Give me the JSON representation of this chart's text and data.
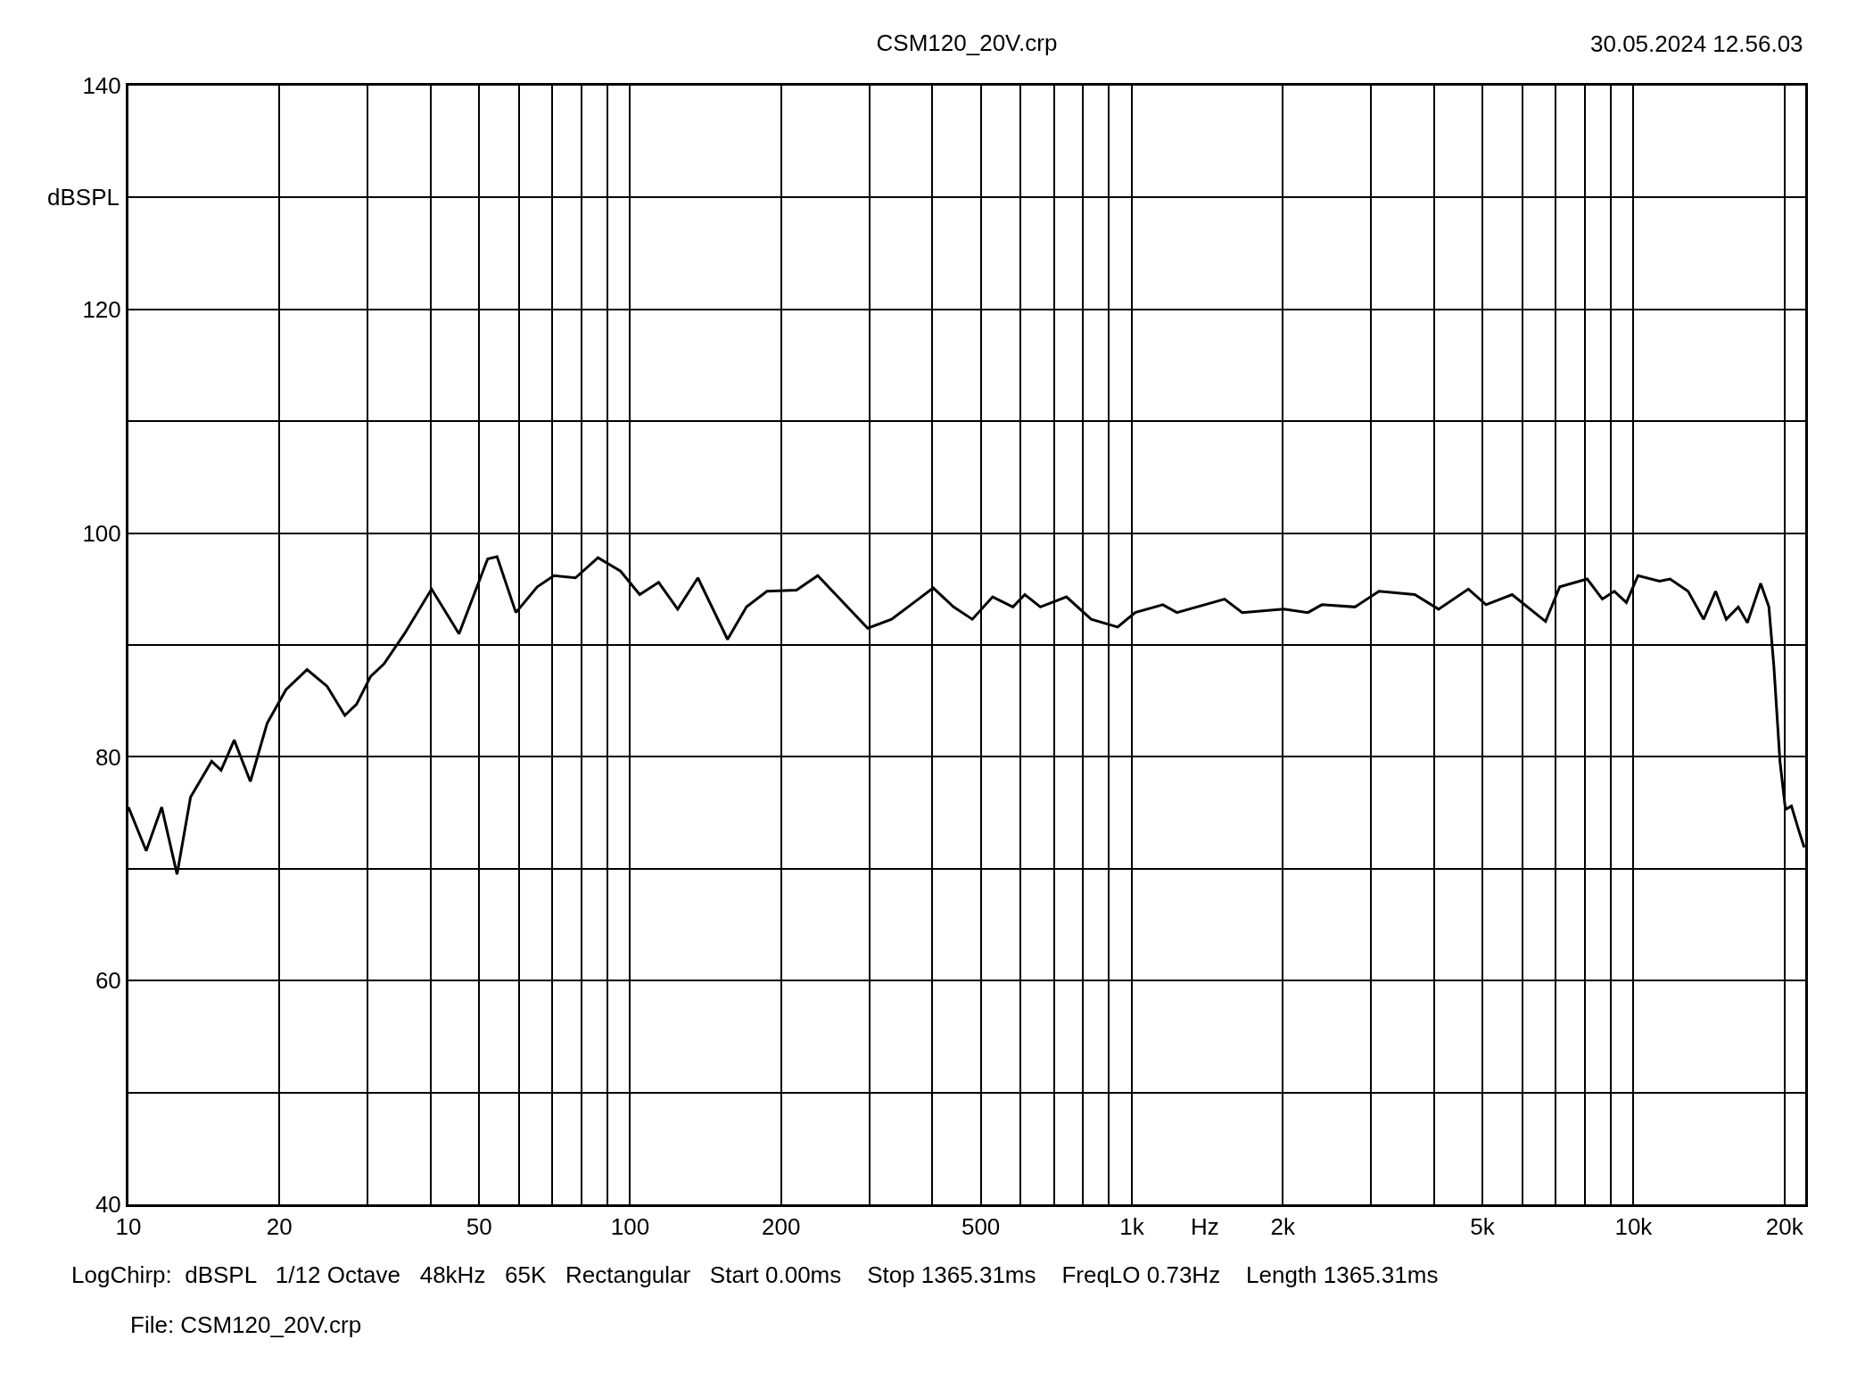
{
  "chart_data": {
    "type": "line",
    "title": "CSM120_20V.crp",
    "xlabel": "Hz",
    "ylabel": "dBSPL",
    "annotations": [
      "30.05.2024 12.56.03",
      "LogChirp:  dBSPL   1/12 Octave   48kHz   65K   Rectangular   Start 0.00ms    Stop 1365.31ms    FreqLO 0.73Hz    Length 1365.31ms",
      "File: CSM120_20V.crp"
    ],
    "log": "x",
    "grid": true,
    "marker": "none",
    "line_style": "solid",
    "xlim": [
      10,
      22000
    ],
    "ylim": [
      40,
      140
    ],
    "xticks": [
      10,
      20,
      {
        "value": 30,
        "label": null
      },
      {
        "value": 40,
        "label": null
      },
      50,
      {
        "value": 60,
        "label": null
      },
      {
        "value": 70,
        "label": null
      },
      {
        "value": 80,
        "label": null
      },
      {
        "value": 90,
        "label": null
      },
      100,
      200,
      {
        "value": 300,
        "label": null
      },
      {
        "value": 400,
        "label": null
      },
      500,
      {
        "value": 600,
        "label": null
      },
      {
        "value": 700,
        "label": null
      },
      {
        "value": 800,
        "label": null
      },
      {
        "value": 900,
        "label": null
      },
      {
        "value": 1000,
        "label": "1k"
      },
      {
        "value": 2000,
        "label": "2k"
      },
      {
        "value": 3000,
        "label": null
      },
      {
        "value": 4000,
        "label": null
      },
      {
        "value": 5000,
        "label": "5k"
      },
      {
        "value": 6000,
        "label": null
      },
      {
        "value": 7000,
        "label": null
      },
      {
        "value": 8000,
        "label": null
      },
      {
        "value": 9000,
        "label": null
      },
      {
        "value": 10000,
        "label": "10k"
      },
      {
        "value": 20000,
        "label": "20k"
      }
    ],
    "yticks": [
      40,
      {
        "value": 50,
        "label": null
      },
      60,
      {
        "value": 70,
        "label": null
      },
      80,
      {
        "value": 90,
        "label": null
      },
      100,
      {
        "value": 110,
        "label": null
      },
      120,
      {
        "value": 130,
        "label": null
      },
      140
    ],
    "series": [
      {
        "color": "#000000",
        "x": [
          10,
          10.85,
          11.65,
          12.5,
          13.3,
          14.65,
          15.3,
          16.25,
          17.5,
          18.9,
          20.6,
          22.7,
          24.9,
          27,
          28.5,
          30.4,
          32.3,
          35.5,
          40.2,
          45.6,
          52,
          54.3,
          59.2,
          65.3,
          70.5,
          77.8,
          86.3,
          95.7,
          104.5,
          114,
          124.4,
          136.5,
          156.4,
          170.6,
          187.4,
          214.6,
          236.6,
          297.6,
          332,
          370.4,
          402,
          441.3,
          481,
          528,
          579.5,
          612,
          657.4,
          741,
          830,
          937,
          1016,
          1153,
          1230,
          1531,
          1660,
          2009,
          2244,
          2393,
          2786,
          3110,
          3665,
          4087,
          4687,
          5082,
          5730,
          6680,
          7130,
          8088,
          8670,
          9160,
          9680,
          10210,
          11270,
          11830,
          12850,
          13800,
          14580,
          15310,
          16180,
          16870,
          17930,
          18620,
          19050,
          19590,
          20090,
          20650,
          21330,
          21900
        ],
        "values": [
          75.5,
          71.6,
          75.5,
          69.5,
          76.4,
          79.6,
          78.8,
          81.5,
          77.8,
          83,
          86,
          87.8,
          86.3,
          83.7,
          84.7,
          87.2,
          88.3,
          91,
          95,
          91,
          97.7,
          97.9,
          92.9,
          95.2,
          96.2,
          96,
          97.8,
          96.6,
          94.5,
          95.6,
          93.2,
          96,
          90.5,
          93.4,
          94.8,
          94.9,
          96.2,
          91.5,
          92.3,
          93.9,
          95.1,
          93.4,
          92.3,
          94.3,
          93.4,
          94.5,
          93.4,
          94.3,
          92.3,
          91.6,
          92.9,
          93.6,
          92.9,
          94.1,
          92.9,
          93.2,
          92.9,
          93.6,
          93.4,
          94.8,
          94.5,
          93.2,
          95,
          93.6,
          94.5,
          92.1,
          95.2,
          95.9,
          94.1,
          94.8,
          93.8,
          96.2,
          95.7,
          95.9,
          94.8,
          92.3,
          94.8,
          92.3,
          93.4,
          92,
          95.5,
          93.4,
          88.1,
          79.6,
          75.3,
          75.6,
          73.5,
          71.9
        ]
      }
    ]
  }
}
